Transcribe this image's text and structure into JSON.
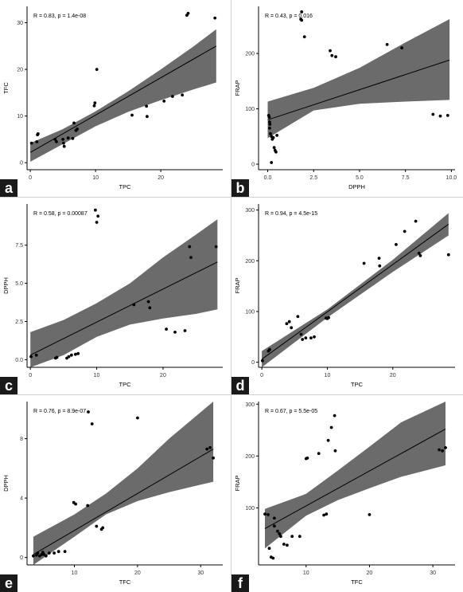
{
  "chart_data": [
    {
      "id": "a",
      "panel_letter": "a",
      "type": "scatter",
      "xlabel": "TPC",
      "ylabel": "TFC",
      "annotation": "R = 0.83, p = 1.4e-08",
      "xlim": [
        -0.5,
        29.5
      ],
      "ylim": [
        -1.5,
        33.5
      ],
      "xticks": [
        0,
        10,
        20
      ],
      "yticks": [
        0,
        10,
        20,
        30
      ],
      "points": [
        [
          0.2,
          4.2
        ],
        [
          1.0,
          4.5
        ],
        [
          1.1,
          6.0
        ],
        [
          1.2,
          6.2
        ],
        [
          3.8,
          5.0
        ],
        [
          4.0,
          4.5
        ],
        [
          5.0,
          5.0
        ],
        [
          5.1,
          4.2
        ],
        [
          5.2,
          3.5
        ],
        [
          5.8,
          5.3
        ],
        [
          6.5,
          5.2
        ],
        [
          6.7,
          8.5
        ],
        [
          7.0,
          6.9
        ],
        [
          7.2,
          7.2
        ],
        [
          9.8,
          12.2
        ],
        [
          9.9,
          12.8
        ],
        [
          10.2,
          20.0
        ],
        [
          15.6,
          10.2
        ],
        [
          17.8,
          12.1
        ],
        [
          17.9,
          9.9
        ],
        [
          20.5,
          13.2
        ],
        [
          21.8,
          14.2
        ],
        [
          23.3,
          14.5
        ],
        [
          24.0,
          31.6
        ],
        [
          24.2,
          32.0
        ],
        [
          28.3,
          31.0
        ]
      ],
      "fit": [
        [
          0,
          2.2
        ],
        [
          28.5,
          25.0
        ]
      ],
      "band": [
        [
          0,
          0.2,
          4.2
        ],
        [
          5,
          4.0,
          7.2
        ],
        [
          10,
          7.8,
          11.0
        ],
        [
          15,
          10.9,
          15.3
        ],
        [
          20,
          13.4,
          20.0
        ],
        [
          25,
          15.7,
          24.9
        ],
        [
          28.5,
          17.2,
          28.6
        ]
      ]
    },
    {
      "id": "b",
      "panel_letter": "b",
      "type": "scatter",
      "xlabel": "DPPH",
      "ylabel": "FRAP",
      "annotation": "R = 0.43, p = 0.016",
      "xlim": [
        -0.5,
        10.2
      ],
      "ylim": [
        -10,
        285
      ],
      "xticks": [
        0,
        2.5,
        5,
        7.5,
        10
      ],
      "xtick_labels": [
        "0.0",
        "2.5",
        "5.0",
        "7.5",
        "10.0"
      ],
      "yticks": [
        0,
        100,
        200
      ],
      "points": [
        [
          0.05,
          88
        ],
        [
          0.08,
          85
        ],
        [
          0.1,
          76
        ],
        [
          0.12,
          72
        ],
        [
          0.15,
          55
        ],
        [
          0.2,
          50
        ],
        [
          0.25,
          45
        ],
        [
          0.3,
          48
        ],
        [
          0.35,
          30
        ],
        [
          0.4,
          25
        ],
        [
          0.45,
          22
        ],
        [
          0.5,
          52
        ],
        [
          0.2,
          3
        ],
        [
          0.1,
          65
        ],
        [
          1.8,
          262
        ],
        [
          1.85,
          260
        ],
        [
          2.0,
          230
        ],
        [
          1.85,
          275
        ],
        [
          3.4,
          205
        ],
        [
          3.5,
          196
        ],
        [
          3.7,
          194
        ],
        [
          6.5,
          216
        ],
        [
          7.3,
          210
        ],
        [
          9.0,
          90
        ],
        [
          9.4,
          87
        ],
        [
          9.8,
          88
        ]
      ],
      "fit": [
        [
          0,
          80
        ],
        [
          9.9,
          188
        ]
      ],
      "band": [
        [
          0,
          47,
          113
        ],
        [
          2.5,
          97,
          138
        ],
        [
          5,
          109,
          174
        ],
        [
          7.5,
          113,
          220
        ],
        [
          9.9,
          116,
          262
        ]
      ]
    },
    {
      "id": "c",
      "panel_letter": "c",
      "type": "scatter",
      "xlabel": "TPC",
      "ylabel": "DPPH",
      "annotation": "R = 0.58, p = 0.00087",
      "xlim": [
        -0.5,
        29.0
      ],
      "ylim": [
        -0.5,
        10.2
      ],
      "xticks": [
        0,
        10,
        20
      ],
      "yticks": [
        0,
        2.5,
        5,
        7.5
      ],
      "ytick_labels": [
        "0.0",
        "2.5",
        "5.0",
        "7.5"
      ],
      "points": [
        [
          0.1,
          0.2
        ],
        [
          0.9,
          0.3
        ],
        [
          3.8,
          0.1
        ],
        [
          4.0,
          0.15
        ],
        [
          5.5,
          0.1
        ],
        [
          5.8,
          0.2
        ],
        [
          6.2,
          0.3
        ],
        [
          6.8,
          0.35
        ],
        [
          7.2,
          0.4
        ],
        [
          9.8,
          9.8
        ],
        [
          10.0,
          9.0
        ],
        [
          10.2,
          9.4
        ],
        [
          15.6,
          3.6
        ],
        [
          17.8,
          3.8
        ],
        [
          18.0,
          3.4
        ],
        [
          20.5,
          2.0
        ],
        [
          21.8,
          1.8
        ],
        [
          23.3,
          1.9
        ],
        [
          24.0,
          7.4
        ],
        [
          24.2,
          6.7
        ],
        [
          28.0,
          7.4
        ]
      ],
      "fit": [
        [
          0,
          0.3
        ],
        [
          28.2,
          6.4
        ]
      ],
      "band": [
        [
          0,
          -1.3,
          1.8
        ],
        [
          5,
          0.3,
          2.6
        ],
        [
          10,
          1.5,
          3.7
        ],
        [
          15,
          2.3,
          5.0
        ],
        [
          20,
          2.7,
          6.7
        ],
        [
          25,
          3.0,
          8.2
        ],
        [
          28.2,
          3.3,
          9.2
        ]
      ]
    },
    {
      "id": "d",
      "panel_letter": "d",
      "type": "scatter",
      "xlabel": "TPC",
      "ylabel": "FRAP",
      "annotation": "R = 0.94, p = 4.5e-15",
      "xlim": [
        -0.5,
        29.5
      ],
      "ylim": [
        -10,
        312
      ],
      "xticks": [
        0,
        10,
        20
      ],
      "yticks": [
        0,
        100,
        200,
        300
      ],
      "points": [
        [
          0.1,
          3
        ],
        [
          1.0,
          22
        ],
        [
          1.2,
          25
        ],
        [
          3.8,
          76
        ],
        [
          4.2,
          80
        ],
        [
          4.5,
          68
        ],
        [
          5.5,
          90
        ],
        [
          6.0,
          55
        ],
        [
          6.2,
          45
        ],
        [
          6.7,
          48
        ],
        [
          7.5,
          48
        ],
        [
          8.0,
          50
        ],
        [
          9.8,
          87
        ],
        [
          10.0,
          86
        ],
        [
          10.2,
          88
        ],
        [
          15.6,
          195
        ],
        [
          17.9,
          205
        ],
        [
          18.0,
          190
        ],
        [
          20.5,
          232
        ],
        [
          21.8,
          258
        ],
        [
          23.5,
          278
        ],
        [
          24.0,
          215
        ],
        [
          24.2,
          210
        ],
        [
          28.5,
          212
        ]
      ],
      "fit": [
        [
          0,
          6
        ],
        [
          28.5,
          272
        ]
      ],
      "band": [
        [
          0,
          -10,
          22
        ],
        [
          10,
          88,
          104
        ],
        [
          20,
          178,
          202
        ],
        [
          28.5,
          250,
          294
        ]
      ]
    },
    {
      "id": "e",
      "panel_letter": "e",
      "type": "scatter",
      "xlabel": "TFC",
      "ylabel": "DPPH",
      "annotation": "R = 0.76, p = 8.9e-07",
      "xlim": [
        2.5,
        33.5
      ],
      "ylim": [
        -0.5,
        10.5
      ],
      "xticks": [
        10,
        20,
        30
      ],
      "yticks": [
        0,
        4,
        8
      ],
      "points": [
        [
          3.5,
          0.1
        ],
        [
          4.0,
          0.15
        ],
        [
          4.2,
          0.3
        ],
        [
          4.5,
          0.1
        ],
        [
          4.8,
          0.2
        ],
        [
          5.0,
          0.35
        ],
        [
          5.2,
          0.2
        ],
        [
          5.5,
          0.1
        ],
        [
          6.0,
          0.3
        ],
        [
          6.8,
          0.3
        ],
        [
          7.5,
          0.4
        ],
        [
          8.5,
          0.4
        ],
        [
          9.9,
          3.7
        ],
        [
          10.2,
          3.6
        ],
        [
          12.1,
          3.5
        ],
        [
          12.2,
          9.8
        ],
        [
          12.8,
          9.0
        ],
        [
          14.3,
          1.9
        ],
        [
          14.5,
          2.0
        ],
        [
          13.5,
          2.1
        ],
        [
          20.0,
          9.4
        ],
        [
          31.0,
          7.3
        ],
        [
          31.5,
          7.4
        ],
        [
          32.0,
          6.7
        ]
      ],
      "fit": [
        [
          3.5,
          0.2
        ],
        [
          32,
          7.3
        ]
      ],
      "band": [
        [
          3.5,
          -1.0,
          1.4
        ],
        [
          10,
          1.4,
          2.9
        ],
        [
          15,
          2.9,
          4.3
        ],
        [
          20,
          3.8,
          6.0
        ],
        [
          25,
          4.4,
          8.0
        ],
        [
          32,
          5.1,
          11.0
        ]
      ]
    },
    {
      "id": "f",
      "panel_letter": "f",
      "type": "scatter",
      "xlabel": "TFC",
      "ylabel": "FRAP",
      "annotation": "R = 0.67, p = 5.5e-05",
      "xlim": [
        2.5,
        33.5
      ],
      "ylim": [
        -10,
        305
      ],
      "xticks": [
        10,
        20,
        30
      ],
      "yticks": [
        100,
        200,
        300
      ],
      "points": [
        [
          3.5,
          88
        ],
        [
          4.0,
          87
        ],
        [
          4.2,
          22
        ],
        [
          4.5,
          5
        ],
        [
          4.8,
          3
        ],
        [
          5.0,
          80
        ],
        [
          5.0,
          65
        ],
        [
          5.5,
          55
        ],
        [
          5.8,
          50
        ],
        [
          6.0,
          45
        ],
        [
          6.5,
          30
        ],
        [
          7.0,
          28
        ],
        [
          7.8,
          45
        ],
        [
          9.0,
          45
        ],
        [
          10.0,
          195
        ],
        [
          10.2,
          196
        ],
        [
          12.0,
          205
        ],
        [
          12.8,
          86
        ],
        [
          13.2,
          88
        ],
        [
          13.5,
          230
        ],
        [
          14.0,
          255
        ],
        [
          14.5,
          278
        ],
        [
          14.6,
          210
        ],
        [
          20.0,
          87
        ],
        [
          31.0,
          212
        ],
        [
          31.5,
          210
        ],
        [
          32.0,
          216
        ]
      ],
      "fit": [
        [
          3.5,
          60
        ],
        [
          32,
          252
        ]
      ],
      "band": [
        [
          3.5,
          22,
          98
        ],
        [
          10,
          85,
          127
        ],
        [
          15,
          115,
          172
        ],
        [
          20,
          138,
          218
        ],
        [
          25,
          160,
          265
        ],
        [
          32,
          182,
          320
        ]
      ]
    }
  ]
}
